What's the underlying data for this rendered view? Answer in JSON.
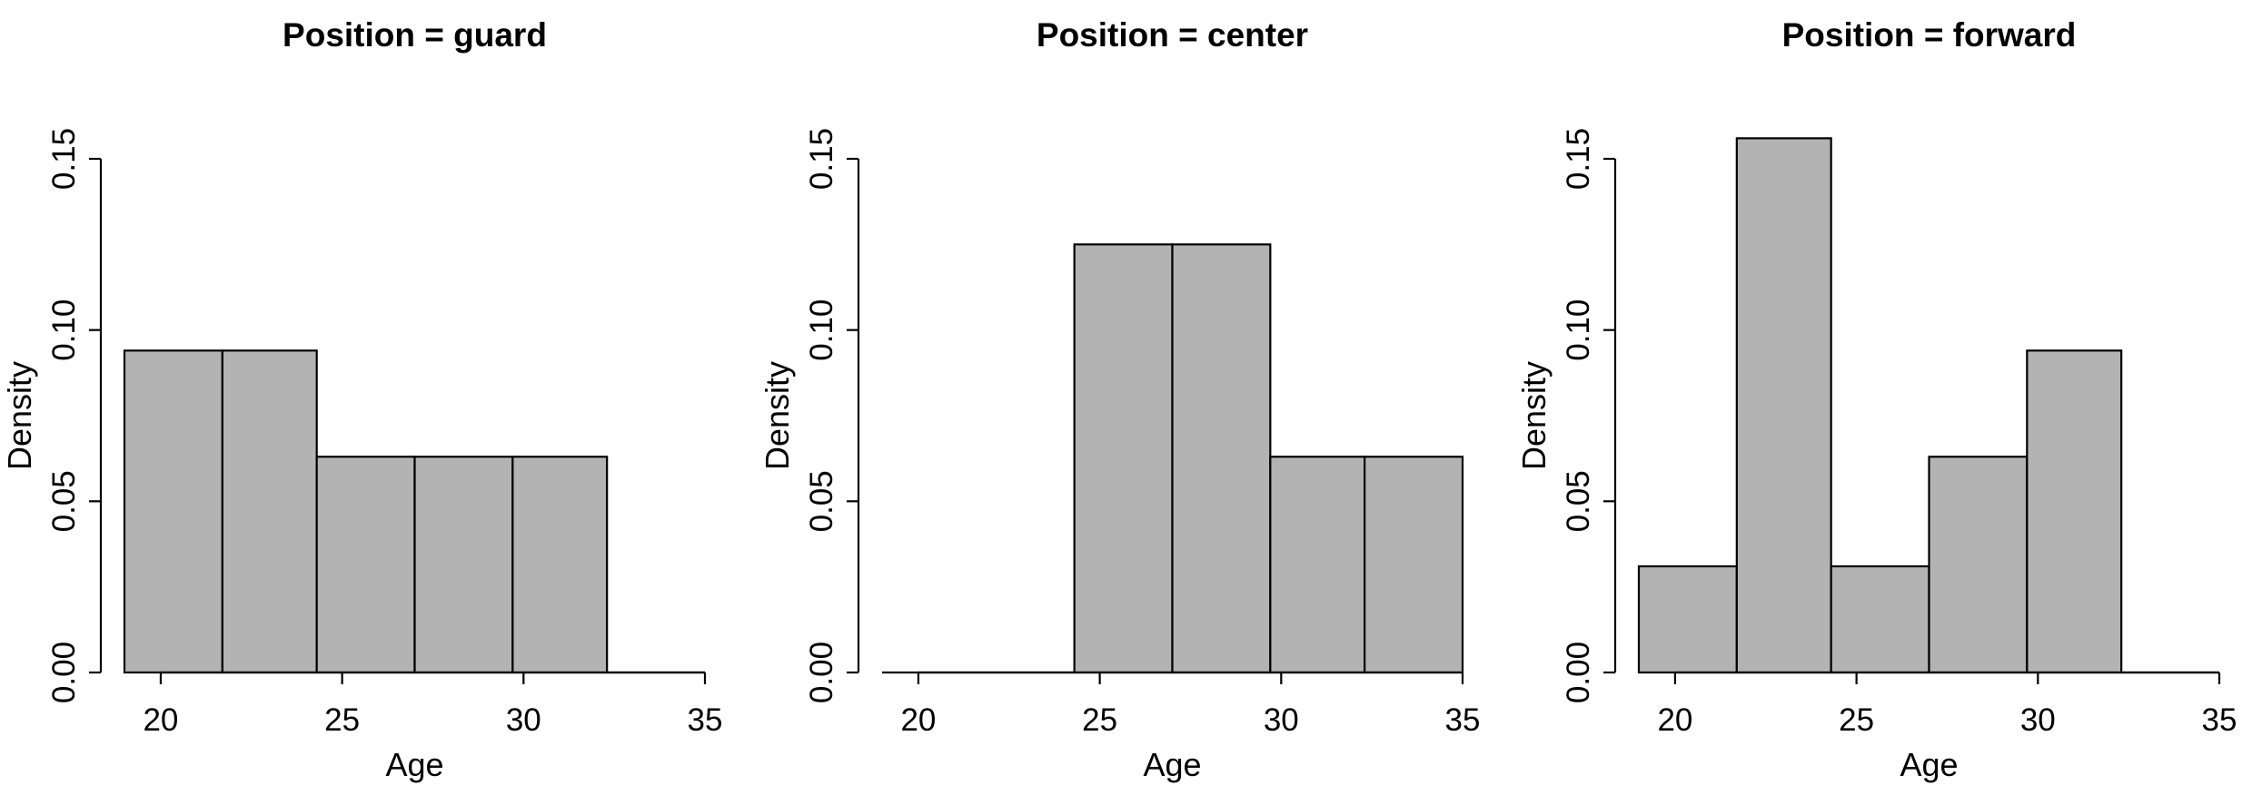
{
  "chart_data": [
    {
      "type": "bar",
      "title": "Position = guard",
      "xlabel": "Age",
      "ylabel": "Density",
      "xlim": [
        19,
        35
      ],
      "ylim": [
        0,
        0.15
      ],
      "x_ticks": [
        "20",
        "25",
        "30",
        "35"
      ],
      "y_ticks": [
        "0.00",
        "0.05",
        "0.10",
        "0.15"
      ],
      "bin_edges": [
        19,
        21.7,
        24.3,
        27,
        29.7,
        32.3,
        35
      ],
      "values": [
        0.094,
        0.094,
        0.063,
        0.063,
        0.063,
        0.0
      ],
      "grid": false,
      "legend": "none",
      "bar_color": "#b3b3b3"
    },
    {
      "type": "bar",
      "title": "Position = center",
      "xlabel": "Age",
      "ylabel": "Density",
      "xlim": [
        19,
        35
      ],
      "ylim": [
        0,
        0.15
      ],
      "x_ticks": [
        "20",
        "25",
        "30",
        "35"
      ],
      "y_ticks": [
        "0.00",
        "0.05",
        "0.10",
        "0.15"
      ],
      "bin_edges": [
        19,
        21.7,
        24.3,
        27,
        29.7,
        32.3,
        35
      ],
      "values": [
        0.0,
        0.0,
        0.125,
        0.125,
        0.063,
        0.063
      ],
      "grid": false,
      "legend": "none",
      "bar_color": "#b3b3b3"
    },
    {
      "type": "bar",
      "title": "Position = forward",
      "xlabel": "Age",
      "ylabel": "Density",
      "xlim": [
        19,
        35
      ],
      "ylim": [
        0,
        0.15
      ],
      "x_ticks": [
        "20",
        "25",
        "30",
        "35"
      ],
      "y_ticks": [
        "0.00",
        "0.05",
        "0.10",
        "0.15"
      ],
      "bin_edges": [
        19,
        21.7,
        24.3,
        27,
        29.7,
        32.3,
        35
      ],
      "values": [
        0.031,
        0.156,
        0.031,
        0.063,
        0.094,
        0.0
      ],
      "grid": false,
      "legend": "none",
      "bar_color": "#b3b3b3"
    }
  ]
}
